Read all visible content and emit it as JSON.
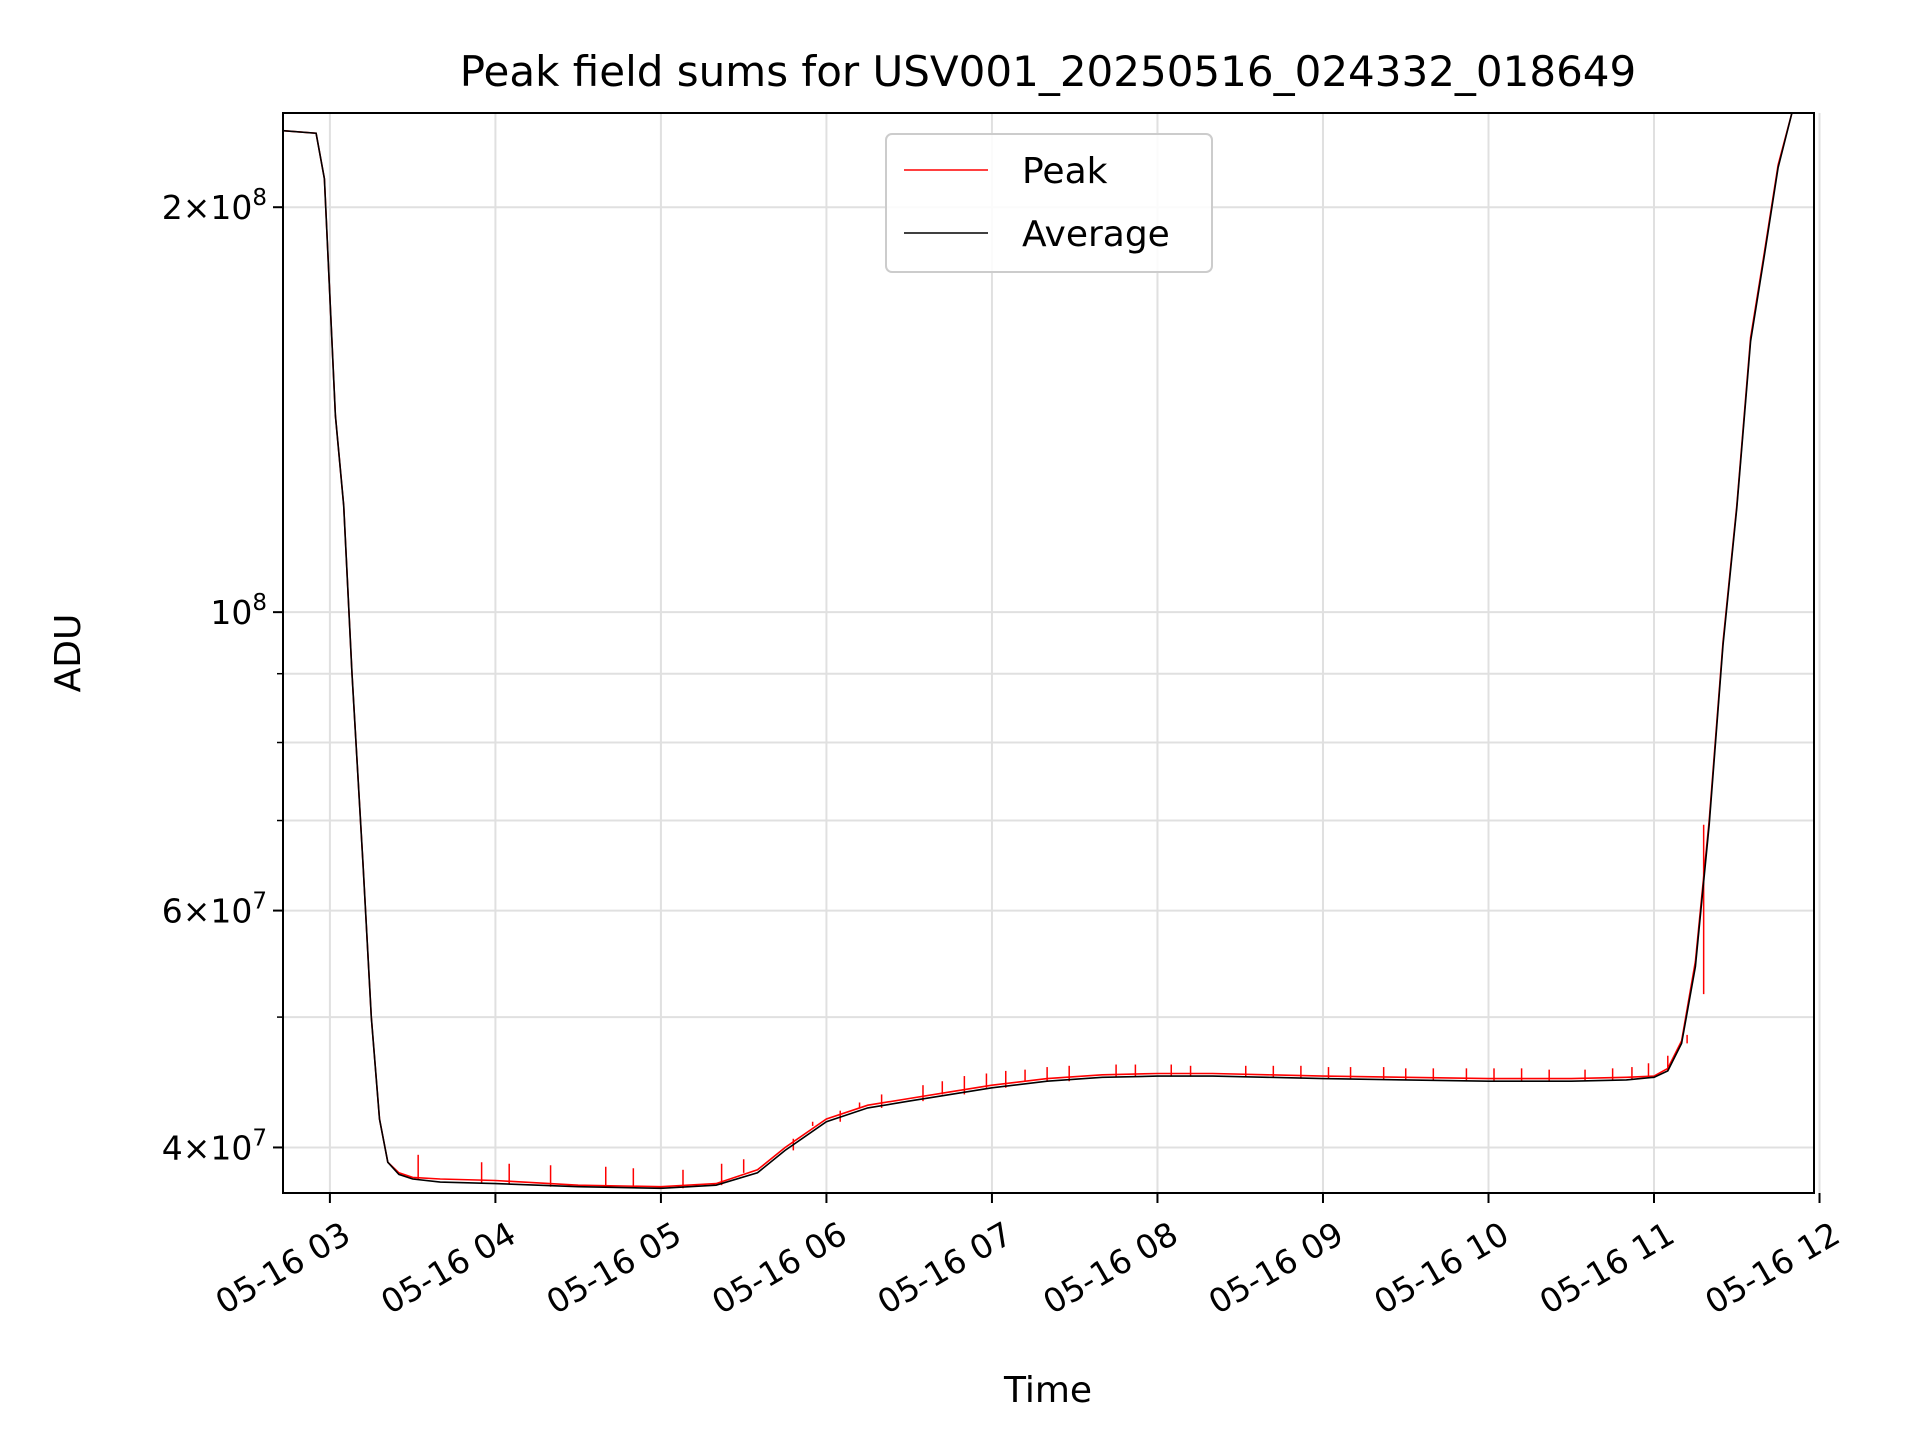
{
  "chart_data": {
    "type": "line",
    "title": "Peak field sums for USV001_20250516_024332_018649",
    "xlabel": "Time",
    "ylabel": "ADU",
    "yscale": "log",
    "ylim": [
      37000000,
      235000000
    ],
    "xlim": [
      "2025-05-16 02:43",
      "2025-05-16 11:58"
    ],
    "grid": true,
    "legend_position": "upper center",
    "x_ticks": [
      "05-16 03",
      "05-16 04",
      "05-16 05",
      "05-16 06",
      "05-16 07",
      "05-16 08",
      "05-16 09",
      "05-16 10",
      "05-16 11",
      "05-16 12"
    ],
    "y_ticks": [
      {
        "value": 40000000,
        "mantissa": "4",
        "exponent": "7"
      },
      {
        "value": 60000000,
        "mantissa": "6",
        "exponent": "7"
      },
      {
        "value": 100000000,
        "mantissa": "",
        "exponent": "8"
      },
      {
        "value": 200000000,
        "mantissa": "2",
        "exponent": "8"
      }
    ],
    "series": [
      {
        "name": "Peak",
        "color": "#ff0000",
        "x": [
          "2025-05-16 02:43",
          "2025-05-16 02:55",
          "2025-05-16 02:58",
          "2025-05-16 03:02",
          "2025-05-16 03:05",
          "2025-05-16 03:08",
          "2025-05-16 03:12",
          "2025-05-16 03:15",
          "2025-05-16 03:18",
          "2025-05-16 03:21",
          "2025-05-16 03:25",
          "2025-05-16 03:30",
          "2025-05-16 03:40",
          "2025-05-16 04:00",
          "2025-05-16 04:30",
          "2025-05-16 05:00",
          "2025-05-16 05:20",
          "2025-05-16 05:35",
          "2025-05-16 05:45",
          "2025-05-16 06:00",
          "2025-05-16 06:15",
          "2025-05-16 06:30",
          "2025-05-16 06:45",
          "2025-05-16 07:00",
          "2025-05-16 07:20",
          "2025-05-16 07:40",
          "2025-05-16 08:00",
          "2025-05-16 08:20",
          "2025-05-16 08:40",
          "2025-05-16 09:00",
          "2025-05-16 09:30",
          "2025-05-16 10:00",
          "2025-05-16 10:30",
          "2025-05-16 10:50",
          "2025-05-16 11:00",
          "2025-05-16 11:05",
          "2025-05-16 11:10",
          "2025-05-16 11:15",
          "2025-05-16 11:20",
          "2025-05-16 11:25",
          "2025-05-16 11:30",
          "2025-05-16 11:35",
          "2025-05-16 11:40",
          "2025-05-16 11:45",
          "2025-05-16 11:50"
        ],
        "y": [
          228000000,
          227000000,
          210000000,
          140000000,
          120000000,
          90000000,
          65000000,
          50000000,
          42000000,
          39000000,
          38300000,
          38000000,
          37900000,
          37800000,
          37500000,
          37400000,
          37600000,
          38500000,
          40000000,
          42000000,
          43000000,
          43500000,
          44000000,
          44500000,
          45000000,
          45300000,
          45400000,
          45400000,
          45300000,
          45200000,
          45100000,
          45000000,
          45000000,
          45100000,
          45200000,
          45800000,
          48000000,
          55000000,
          70000000,
          95000000,
          120000000,
          160000000,
          185000000,
          215000000,
          235000000
        ]
      },
      {
        "name": "Average",
        "color": "#000000",
        "x": [
          "2025-05-16 02:43",
          "2025-05-16 02:55",
          "2025-05-16 02:58",
          "2025-05-16 03:02",
          "2025-05-16 03:05",
          "2025-05-16 03:08",
          "2025-05-16 03:12",
          "2025-05-16 03:15",
          "2025-05-16 03:18",
          "2025-05-16 03:21",
          "2025-05-16 03:25",
          "2025-05-16 03:30",
          "2025-05-16 03:40",
          "2025-05-16 04:00",
          "2025-05-16 04:30",
          "2025-05-16 05:00",
          "2025-05-16 05:20",
          "2025-05-16 05:35",
          "2025-05-16 05:45",
          "2025-05-16 06:00",
          "2025-05-16 06:15",
          "2025-05-16 06:30",
          "2025-05-16 06:45",
          "2025-05-16 07:00",
          "2025-05-16 07:20",
          "2025-05-16 07:40",
          "2025-05-16 08:00",
          "2025-05-16 08:20",
          "2025-05-16 08:40",
          "2025-05-16 09:00",
          "2025-05-16 09:30",
          "2025-05-16 10:00",
          "2025-05-16 10:30",
          "2025-05-16 10:50",
          "2025-05-16 11:00",
          "2025-05-16 11:05",
          "2025-05-16 11:10",
          "2025-05-16 11:15",
          "2025-05-16 11:20",
          "2025-05-16 11:25",
          "2025-05-16 11:30",
          "2025-05-16 11:35",
          "2025-05-16 11:40",
          "2025-05-16 11:45",
          "2025-05-16 11:50"
        ],
        "y": [
          228000000,
          227000000,
          210000000,
          140000000,
          120000000,
          90000000,
          65000000,
          50000000,
          42000000,
          39000000,
          38200000,
          37900000,
          37700000,
          37600000,
          37400000,
          37300000,
          37500000,
          38300000,
          39800000,
          41800000,
          42800000,
          43300000,
          43800000,
          44300000,
          44800000,
          45100000,
          45200000,
          45200000,
          45100000,
          45000000,
          44900000,
          44800000,
          44800000,
          44900000,
          45100000,
          45600000,
          47800000,
          54500000,
          69500000,
          94500000,
          119500000,
          159000000,
          184000000,
          214000000,
          235000000
        ]
      }
    ],
    "peak_spikes": {
      "x": [
        "2025-05-16 03:32",
        "2025-05-16 03:55",
        "2025-05-16 04:05",
        "2025-05-16 04:20",
        "2025-05-16 04:40",
        "2025-05-16 04:50",
        "2025-05-16 05:08",
        "2025-05-16 05:22",
        "2025-05-16 05:30",
        "2025-05-16 05:48",
        "2025-05-16 05:55",
        "2025-05-16 06:05",
        "2025-05-16 06:12",
        "2025-05-16 06:20",
        "2025-05-16 06:35",
        "2025-05-16 06:42",
        "2025-05-16 06:50",
        "2025-05-16 06:58",
        "2025-05-16 07:05",
        "2025-05-16 07:12",
        "2025-05-16 07:20",
        "2025-05-16 07:28",
        "2025-05-16 07:45",
        "2025-05-16 07:52",
        "2025-05-16 08:05",
        "2025-05-16 08:12",
        "2025-05-16 08:32",
        "2025-05-16 08:42",
        "2025-05-16 08:52",
        "2025-05-16 09:02",
        "2025-05-16 09:10",
        "2025-05-16 09:22",
        "2025-05-16 09:30",
        "2025-05-16 09:40",
        "2025-05-16 09:52",
        "2025-05-16 10:02",
        "2025-05-16 10:12",
        "2025-05-16 10:22",
        "2025-05-16 10:35",
        "2025-05-16 10:45",
        "2025-05-16 10:52",
        "2025-05-16 10:58",
        "2025-05-16 11:05",
        "2025-05-16 11:12",
        "2025-05-16 11:18"
      ],
      "y": [
        39500000,
        39000000,
        38900000,
        38800000,
        38700000,
        38600000,
        38500000,
        38900000,
        39200000,
        40600000,
        41500000,
        42600000,
        43200000,
        43800000,
        44500000,
        44800000,
        45200000,
        45400000,
        45600000,
        45700000,
        45900000,
        46000000,
        46100000,
        46100000,
        46100000,
        46000000,
        46000000,
        46000000,
        46000000,
        45900000,
        45900000,
        45900000,
        45800000,
        45800000,
        45800000,
        45800000,
        45800000,
        45700000,
        45700000,
        45800000,
        45900000,
        46200000,
        46800000,
        48500000,
        52000000
      ]
    }
  }
}
